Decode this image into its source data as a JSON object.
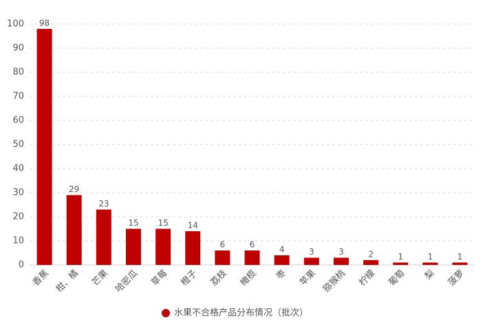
{
  "chart_data": {
    "type": "bar",
    "categories": [
      "香蕉",
      "柑、橘",
      "芒果",
      "哈密瓜",
      "草莓",
      "橙子",
      "荔枝",
      "橄榄",
      "枣",
      "苹果",
      "猕猴桃",
      "柠檬",
      "葡萄",
      "梨",
      "菠萝"
    ],
    "series": [
      {
        "name": "水果不合格产品分布情况（批次）",
        "color": "#c00000",
        "values": [
          98,
          29,
          23,
          15,
          15,
          14,
          6,
          6,
          4,
          3,
          3,
          2,
          1,
          1,
          1
        ]
      }
    ],
    "ylim": [
      0,
      100
    ],
    "yticks": [
      0,
      10,
      20,
      30,
      40,
      50,
      60,
      70,
      80,
      90,
      100
    ],
    "grid": true,
    "legend": "bottom"
  }
}
